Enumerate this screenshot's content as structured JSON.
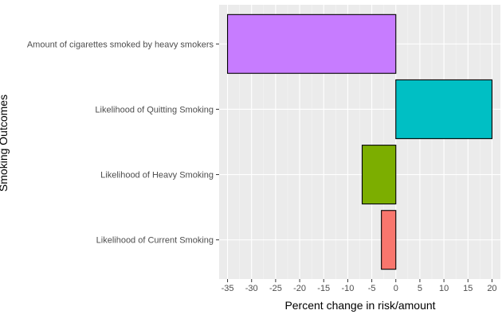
{
  "chart_data": {
    "type": "bar",
    "orientation": "horizontal",
    "categories": [
      "Likelihood of Current Smoking",
      "Likelihood of Heavy Smoking",
      "Likelihood of Quitting Smoking",
      "Amount of cigarettes smoked by heavy smokers"
    ],
    "values": [
      -3,
      -7,
      20,
      -35
    ],
    "bar_colors": [
      "#F8766D",
      "#7CAE00",
      "#00BFC4",
      "#C77CFF"
    ],
    "xlabel": "Percent change in risk/amount",
    "ylabel": "Smoking Outcomes",
    "xlim": [
      -36.75,
      21.75
    ],
    "xticks": [
      -35,
      -30,
      -25,
      -20,
      -15,
      -10,
      -5,
      0,
      5,
      10,
      15,
      20
    ],
    "xtick_labels": [
      "-35",
      "-30",
      "-25",
      "-20",
      "-15",
      "-10",
      "-5",
      "0",
      "5",
      "10",
      "15",
      "20"
    ],
    "grid": true,
    "legend": "none",
    "background": "#EBEBEB"
  }
}
